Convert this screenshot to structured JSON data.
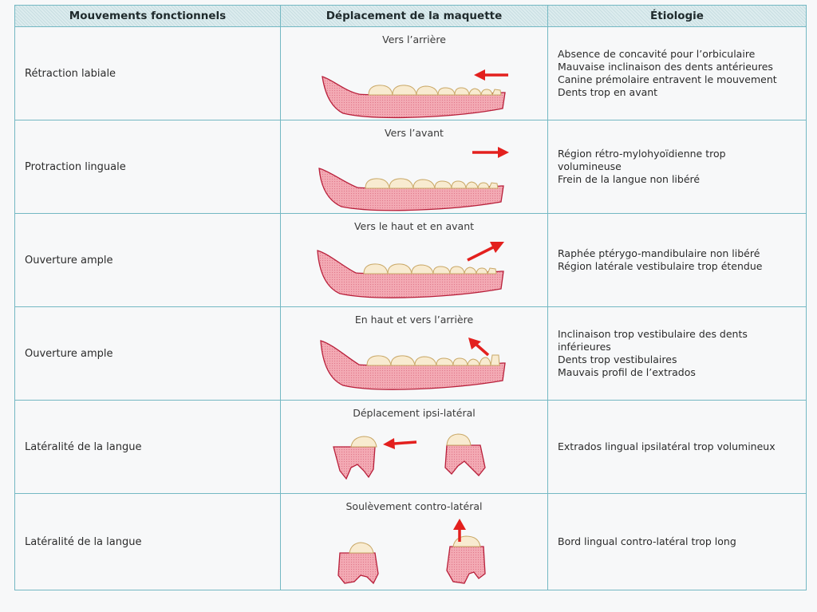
{
  "headers": {
    "movements": "Mouvements fonctionnels",
    "displacement": "Déplacement de la maquette",
    "etiology": "Étiologie"
  },
  "rows": [
    {
      "movement": "Rétraction labiale",
      "caption": "Vers l’arrière",
      "etiology": [
        "Absence de concavité pour l’orbiculaire",
        "Mauvaise inclinaison des dents antérieures",
        "Canine prémolaire entravent le mouvement",
        "Dents trop en avant"
      ]
    },
    {
      "movement": "Protraction linguale",
      "caption": "Vers l’avant",
      "etiology": [
        "Région rétro-mylohyoïdienne trop",
        "volumineuse",
        "Frein de la langue non libéré"
      ]
    },
    {
      "movement": "Ouverture ample",
      "caption": "Vers le haut et en avant",
      "etiology": [
        "Raphée ptérygo-mandibulaire non libéré",
        "Région latérale vestibulaire trop étendue"
      ]
    },
    {
      "movement": "Ouverture ample",
      "caption": "En haut et vers l’arrière",
      "etiology": [
        "Inclinaison trop vestibulaire des dents",
        "inférieures",
        "Dents trop vestibulaires",
        "Mauvais profil de l’extrados"
      ]
    },
    {
      "movement": "Latéralité de la langue",
      "caption": "Déplacement ipsi-latéral",
      "etiology": [
        "Extrados lingual ipsilatéral trop volumineux"
      ]
    },
    {
      "movement": "Latéralité de la langue",
      "caption": "Soulèvement contro-latéral",
      "etiology": [
        "Bord lingual contro-latéral trop long"
      ]
    }
  ],
  "colors": {
    "border": "#74b8c3",
    "gum": "#f2a4ae",
    "gum_outline": "#b81f3a",
    "tooth": "#f8ebd0",
    "arrow": "#e3201e"
  }
}
